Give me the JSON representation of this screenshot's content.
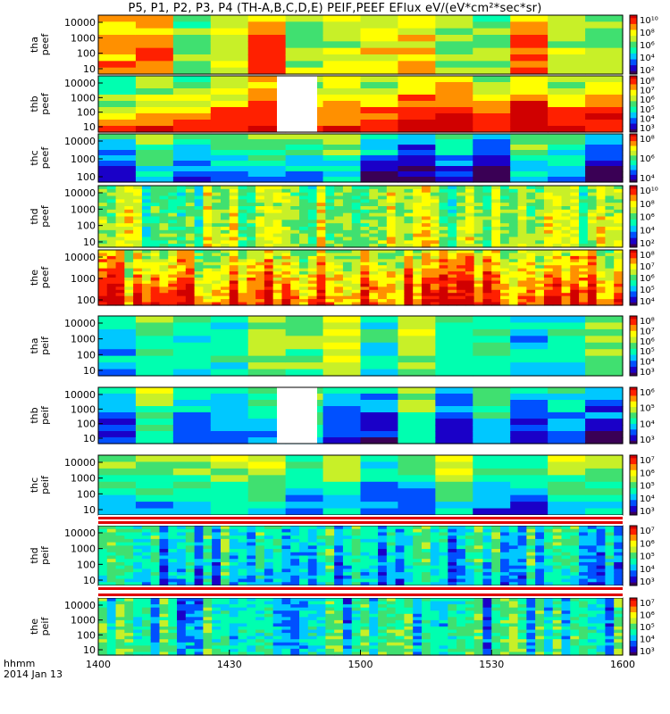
{
  "title": "P5, P1, P2, P3, P4 (TH-A,B,C,D,E) PEIF,PEEF EFlux eV/(eV*cm²*sec*sr)",
  "time_axis": {
    "ticks": [
      "1400",
      "1430",
      "1500",
      "1530",
      "1600"
    ],
    "corner_line1": "hhmm",
    "corner_line2": "2014 Jan 13"
  },
  "colors": {
    "colormap": [
      "#3a0055",
      "#1a00c8",
      "#0050ff",
      "#00c8ff",
      "#00ffb0",
      "#40e070",
      "#c8f028",
      "#ffff00",
      "#ff9000",
      "#ff2000",
      "#d00000"
    ]
  },
  "chart_data": {
    "type": "heatmap",
    "x_range": [
      "1400",
      "1600"
    ],
    "y_scale": "log",
    "panels": [
      {
        "probe": "tha",
        "species": "peef",
        "yticks": [
          "10000",
          "1000",
          "100",
          "10"
        ],
        "cbar_ticks": [
          "10¹⁰",
          "10⁸",
          "10⁶",
          "10⁴",
          "10²"
        ]
      },
      {
        "probe": "thb",
        "species": "peef",
        "yticks": [
          "10000",
          "1000",
          "100",
          "10"
        ],
        "cbar_ticks": [
          "10⁸",
          "10⁷",
          "10⁶",
          "10⁵",
          "10⁴",
          "10³"
        ]
      },
      {
        "probe": "thc",
        "species": "peef",
        "yticks": [
          "10000",
          "1000",
          "100"
        ],
        "cbar_ticks": [
          "10⁸",
          "10⁶",
          "10⁴"
        ]
      },
      {
        "probe": "thd",
        "species": "peef",
        "yticks": [
          "10000",
          "1000",
          "100",
          "10"
        ],
        "cbar_ticks": [
          "10¹⁰",
          "10⁸",
          "10⁶",
          "10⁴",
          "10²"
        ]
      },
      {
        "probe": "the",
        "species": "peef",
        "yticks": [
          "10000",
          "1000",
          "100"
        ],
        "cbar_ticks": [
          "10⁸",
          "10⁷",
          "10⁶",
          "10⁵",
          "10⁴"
        ]
      },
      {
        "probe": "tha",
        "species": "peif",
        "yticks": [
          "10000",
          "1000",
          "100",
          "10"
        ],
        "cbar_ticks": [
          "10⁸",
          "10⁷",
          "10⁶",
          "10⁵",
          "10⁴",
          "10³"
        ]
      },
      {
        "probe": "thb",
        "species": "peif",
        "yticks": [
          "10000",
          "1000",
          "100",
          "10"
        ],
        "cbar_ticks": [
          "10⁶",
          "10⁵",
          "10⁴",
          "10³"
        ]
      },
      {
        "probe": "thc",
        "species": "peif",
        "yticks": [
          "10000",
          "1000",
          "100",
          "10"
        ],
        "cbar_ticks": [
          "10⁷",
          "10⁶",
          "10⁵",
          "10⁴",
          "10³"
        ]
      },
      {
        "probe": "thd",
        "species": "peif",
        "yticks": [
          "10000",
          "1000",
          "100",
          "10"
        ],
        "cbar_ticks": [
          "10⁷",
          "10⁶",
          "10⁵",
          "10⁴",
          "10³"
        ]
      },
      {
        "probe": "the",
        "species": "peif",
        "yticks": [
          "10000",
          "1000",
          "100",
          "10"
        ],
        "cbar_ticks": [
          "10⁷",
          "10⁶",
          "10⁵",
          "10⁴",
          "10³"
        ]
      }
    ]
  }
}
